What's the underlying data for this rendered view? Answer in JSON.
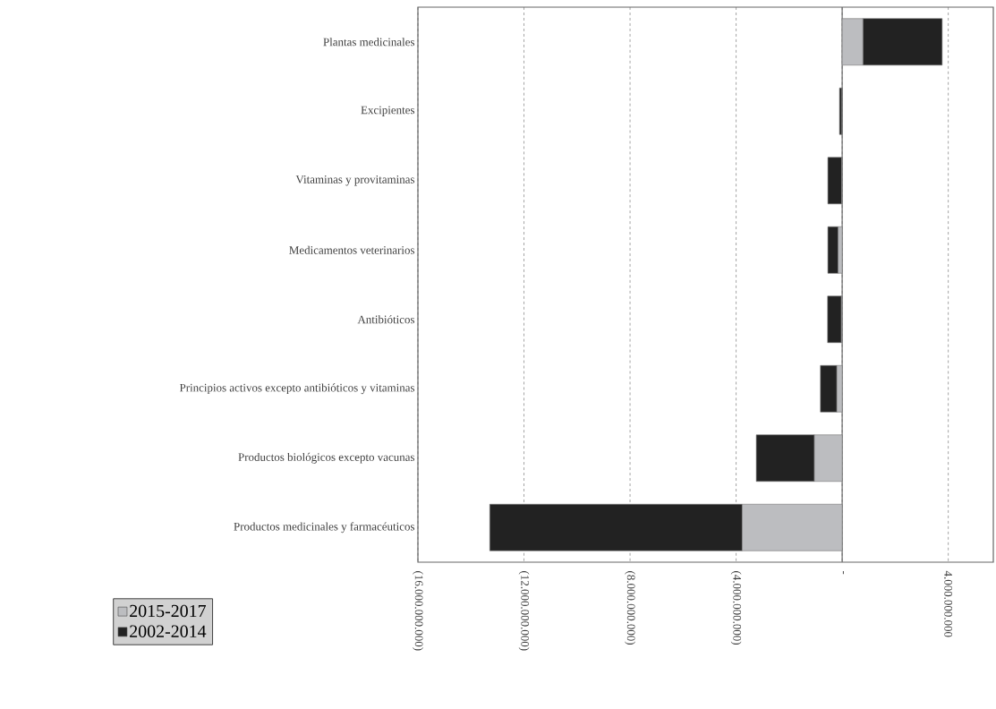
{
  "chart_data": {
    "type": "bar",
    "orientation": "horizontal",
    "stacked": true,
    "categories": [
      "Plantas medicinales",
      "Excipientes",
      "Vitaminas y provitaminas",
      "Medicamentos veterinarios",
      "Antibióticos",
      "Principios activos excepto antibióticos y vitaminas",
      "Productos biológicos excepto vacunas",
      "Productos medicinales y farmacéuticos"
    ],
    "series": [
      {
        "name": "2015-2017",
        "color": "#bcbdc0",
        "values": [
          780000000,
          -10000000,
          -20000000,
          -150000000,
          -30000000,
          -200000000,
          -1050000000,
          -3770000000
        ]
      },
      {
        "name": "2002-2014",
        "color": "#222222",
        "values": [
          2990000000,
          -90000000,
          -520000000,
          -390000000,
          -520000000,
          -620000000,
          -2190000000,
          -9520000000
        ]
      }
    ],
    "xlim": [
      -16000000000,
      5700000000
    ],
    "xticks": [
      {
        "value": -16000000000,
        "label": "(16.000.000.000)"
      },
      {
        "value": -12000000000,
        "label": "(12.000.000.000)"
      },
      {
        "value": -8000000000,
        "label": "(8.000.000.000)"
      },
      {
        "value": -4000000000,
        "label": "(4.000.000.000)"
      },
      {
        "value": 0,
        "label": "-"
      },
      {
        "value": 4000000000,
        "label": "4.000.000.000"
      }
    ],
    "grid": "x",
    "legend": "bottom left"
  }
}
